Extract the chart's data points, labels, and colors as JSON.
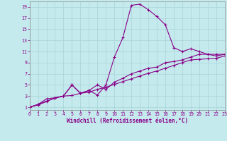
{
  "xlabel": "Windchill (Refroidissement éolien,°C)",
  "bg_color": "#c5eaed",
  "line_color": "#880088",
  "grid_color": "#a8d4d8",
  "xlim": [
    0,
    23
  ],
  "ylim": [
    0.5,
    20
  ],
  "xticks": [
    0,
    1,
    2,
    3,
    4,
    5,
    6,
    7,
    8,
    9,
    10,
    11,
    12,
    13,
    14,
    15,
    16,
    17,
    18,
    19,
    20,
    21,
    22,
    23
  ],
  "yticks": [
    1,
    3,
    5,
    7,
    9,
    11,
    13,
    15,
    17,
    19
  ],
  "line1_x": [
    0,
    1,
    2,
    3,
    4,
    5,
    6,
    7,
    8,
    9,
    10,
    11,
    12,
    13,
    14,
    15,
    16,
    17,
    18,
    19,
    20,
    21,
    22,
    23
  ],
  "line1_y": [
    1.0,
    1.4,
    2.0,
    2.7,
    3.0,
    3.1,
    3.5,
    3.7,
    4.2,
    4.6,
    5.1,
    5.6,
    6.1,
    6.6,
    7.1,
    7.5,
    8.0,
    8.5,
    9.0,
    9.5,
    9.6,
    9.7,
    9.8,
    10.2
  ],
  "line2_x": [
    0,
    1,
    2,
    3,
    4,
    5,
    6,
    7,
    8,
    9,
    10,
    11,
    12,
    13,
    14,
    15,
    16,
    17,
    18,
    19,
    20,
    21,
    22,
    23
  ],
  "line2_y": [
    1.0,
    1.5,
    2.5,
    2.7,
    3.0,
    5.0,
    3.5,
    4.0,
    3.2,
    5.0,
    10.0,
    13.5,
    19.3,
    19.5,
    18.5,
    17.3,
    15.8,
    11.7,
    11.0,
    11.5,
    11.0,
    10.5,
    10.5,
    10.5
  ],
  "line3_x": [
    0,
    1,
    2,
    3,
    4,
    5,
    6,
    7,
    8,
    9,
    10,
    11,
    12,
    13,
    14,
    15,
    16,
    17,
    18,
    19,
    20,
    21,
    22,
    23
  ],
  "line3_y": [
    1.0,
    1.5,
    2.1,
    2.6,
    3.0,
    5.0,
    3.5,
    4.0,
    5.0,
    4.2,
    5.5,
    6.2,
    7.0,
    7.5,
    8.0,
    8.2,
    9.0,
    9.2,
    9.5,
    10.0,
    10.5,
    10.5,
    10.2,
    10.5
  ]
}
